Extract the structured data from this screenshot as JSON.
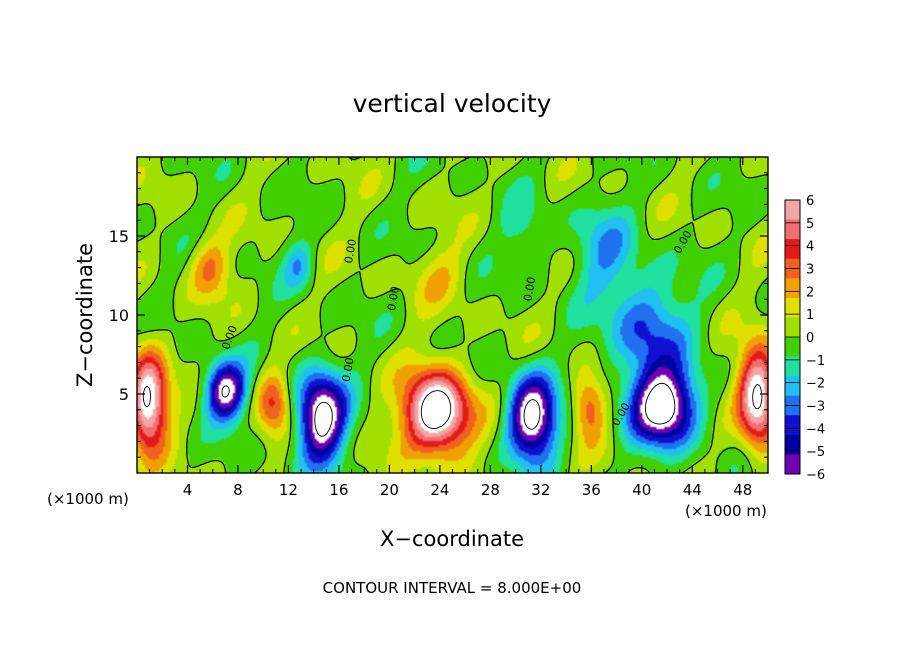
{
  "chart_data": {
    "type": "heatmap",
    "title": "vertical velocity",
    "xlabel": "X−coordinate",
    "ylabel": "Z−coordinate",
    "x_unit_left": "(×1000 m)",
    "x_unit_right": "(×1000 m)",
    "xlim": [
      0,
      50
    ],
    "ylim": [
      0,
      20
    ],
    "x_ticks": [
      4,
      8,
      12,
      16,
      20,
      24,
      28,
      32,
      36,
      40,
      44,
      48
    ],
    "y_ticks": [
      5,
      10,
      15
    ],
    "colorbar": {
      "levels": [
        6,
        5,
        4,
        3,
        2,
        1,
        0,
        -1,
        -2,
        -3,
        -4,
        -5,
        -6
      ],
      "labels": [
        "6",
        "5",
        "4",
        "3",
        "2",
        "1",
        "0",
        "−1",
        "−2",
        "−3",
        "−4",
        "−5",
        "−6"
      ],
      "colors": [
        "#f4a5a5",
        "#f07070",
        "#e41a1a",
        "#f06020",
        "#f0a000",
        "#e0e000",
        "#a0e000",
        "#40d000",
        "#20e0a0",
        "#20c0f0",
        "#2070f0",
        "#1010d0",
        "#0000a0",
        "#7000b0"
      ]
    },
    "features": [
      {
        "kind": "updraft",
        "x": 0.9,
        "z": 4.5,
        "sx": 1.5,
        "sz": 3.0,
        "w": 9
      },
      {
        "kind": "updraft",
        "x": 49.2,
        "z": 4.8,
        "sx": 1.5,
        "sz": 3.0,
        "w": 9
      },
      {
        "kind": "downdraft",
        "x": 7.0,
        "z": 5.2,
        "sx": 1.6,
        "sz": 1.8,
        "w": -8
      },
      {
        "kind": "updraft",
        "x": 10.8,
        "z": 4.5,
        "sx": 1.3,
        "sz": 2.0,
        "w": 4
      },
      {
        "kind": "downdraft",
        "x": 14.6,
        "z": 3.5,
        "sx": 1.9,
        "sz": 2.8,
        "w": -9
      },
      {
        "kind": "updraft",
        "x": 23.8,
        "z": 3.8,
        "sx": 2.6,
        "sz": 2.6,
        "w": 10
      },
      {
        "kind": "downdraft",
        "x": 31.3,
        "z": 3.5,
        "sx": 1.9,
        "sz": 2.6,
        "w": -9
      },
      {
        "kind": "updraft",
        "x": 35.8,
        "z": 4.2,
        "sx": 1.3,
        "sz": 2.0,
        "w": 4
      },
      {
        "kind": "downdraft",
        "x": 41.7,
        "z": 4.2,
        "sx": 2.6,
        "sz": 2.4,
        "w": -9
      },
      {
        "kind": "downdraft",
        "x": 40.5,
        "z": 9.0,
        "sx": 3.0,
        "sz": 3.5,
        "w": -4
      },
      {
        "kind": "downdraft",
        "x": 37.0,
        "z": 14.0,
        "sx": 2.5,
        "sz": 3.0,
        "w": -2.5
      },
      {
        "kind": "updraft",
        "x": 5.8,
        "z": 13.0,
        "sx": 1.6,
        "sz": 1.8,
        "w": 3
      },
      {
        "kind": "downdraft",
        "x": 12.8,
        "z": 13.2,
        "sx": 1.2,
        "sz": 1.5,
        "w": -2.5
      },
      {
        "kind": "updraft",
        "x": 24.0,
        "z": 12.5,
        "sx": 2.2,
        "sz": 2.0,
        "w": 1.6
      },
      {
        "kind": "downdraft",
        "x": 30.8,
        "z": 15.0,
        "sx": 1.8,
        "sz": 2.5,
        "w": -1.5
      }
    ],
    "contour_zero_label": "0.00",
    "contour_interval_text": "CONTOUR INTERVAL = 8.000E+00"
  }
}
